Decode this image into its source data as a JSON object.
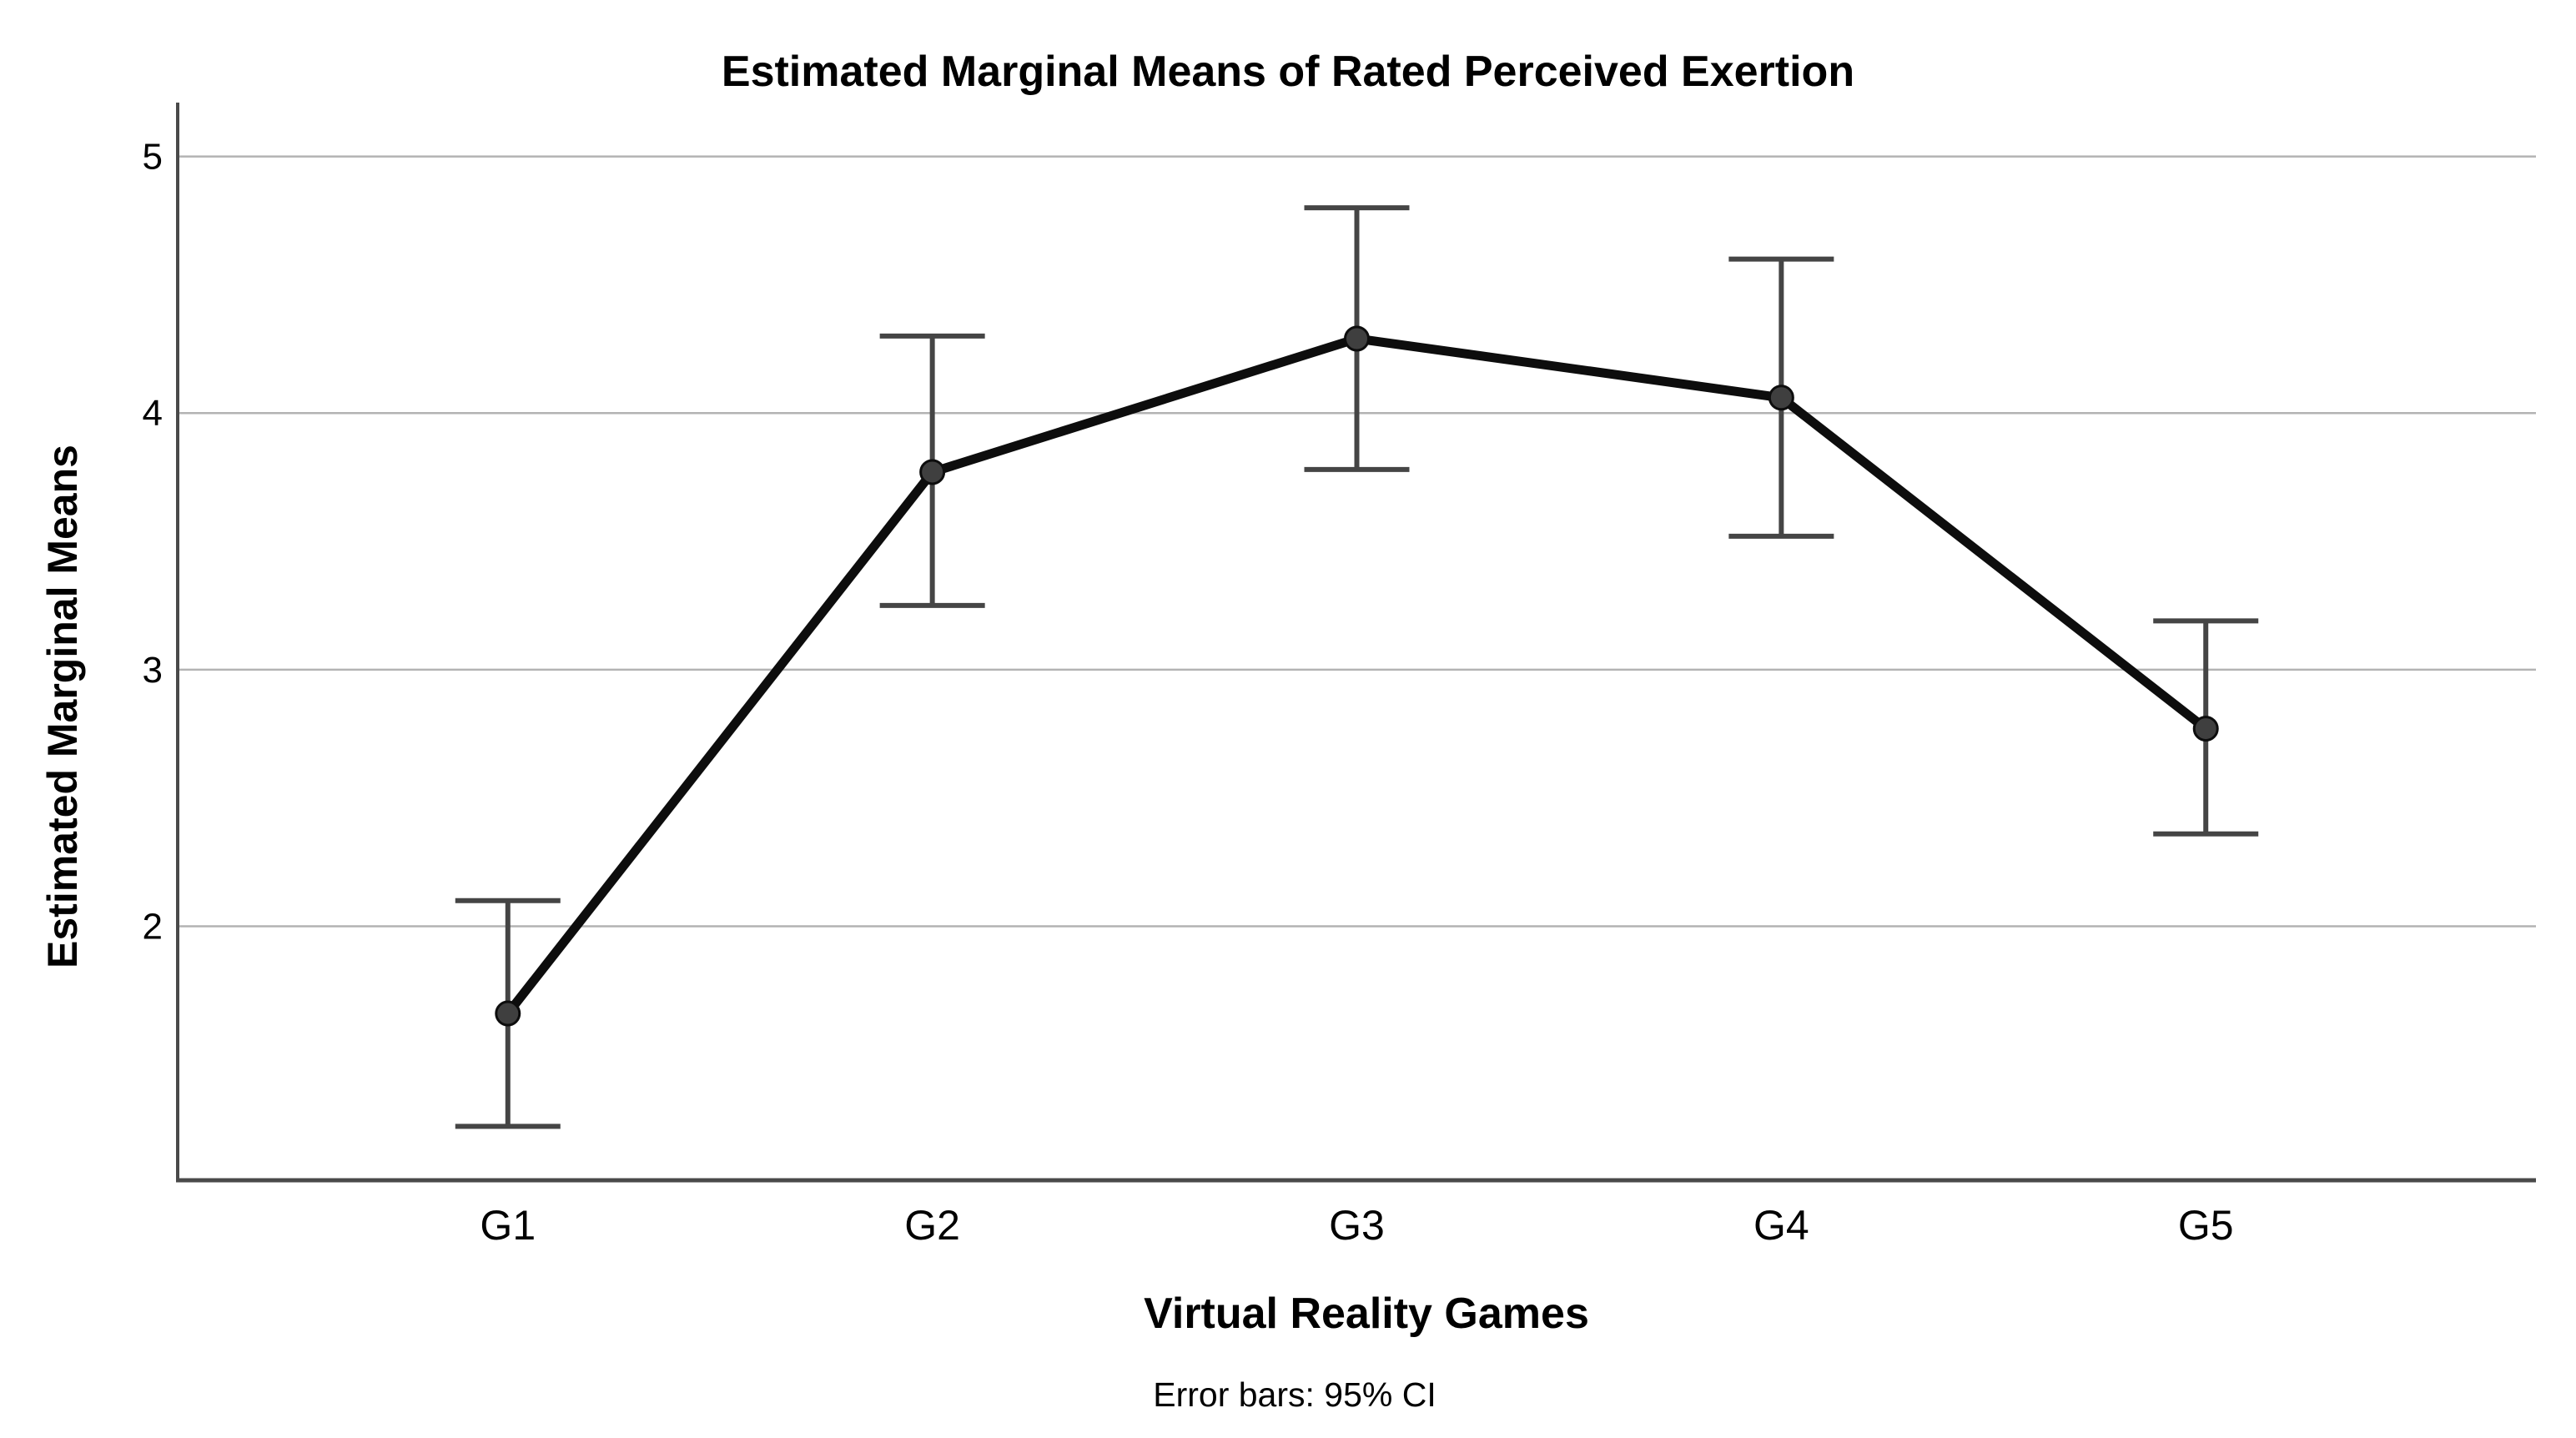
{
  "figure": {
    "background": "#ffffff"
  },
  "chart_data": {
    "type": "line",
    "title": "Estimated Marginal Means of Rated Perceived Exertion",
    "xlabel": "Virtual Reality Games",
    "ylabel": "Estimated Marginal Means",
    "footnote": "Error bars: 95% CI",
    "categories": [
      "G1",
      "G2",
      "G3",
      "G4",
      "G5"
    ],
    "series": [
      {
        "name": "Estimated Marginal Means",
        "values": [
          1.66,
          3.77,
          4.29,
          4.06,
          2.77
        ]
      }
    ],
    "error_bars": {
      "label": "95% CI",
      "low": [
        1.22,
        3.25,
        3.78,
        3.52,
        2.36
      ],
      "high": [
        2.1,
        4.3,
        4.8,
        4.6,
        3.19
      ]
    },
    "yticks": [
      2,
      3,
      4,
      5
    ],
    "ylim": [
      1.01,
      5.21
    ],
    "grid": "horizontal",
    "legend_position": "none",
    "colors": {
      "series_line": "#0d0d0d",
      "marker_fill": "#3f3f3f",
      "marker_stroke": "#0d0d0d",
      "error_bar": "#454545",
      "gridline": "#b3b3b3",
      "axis": "#4a4a4a",
      "text": "#000000"
    }
  }
}
